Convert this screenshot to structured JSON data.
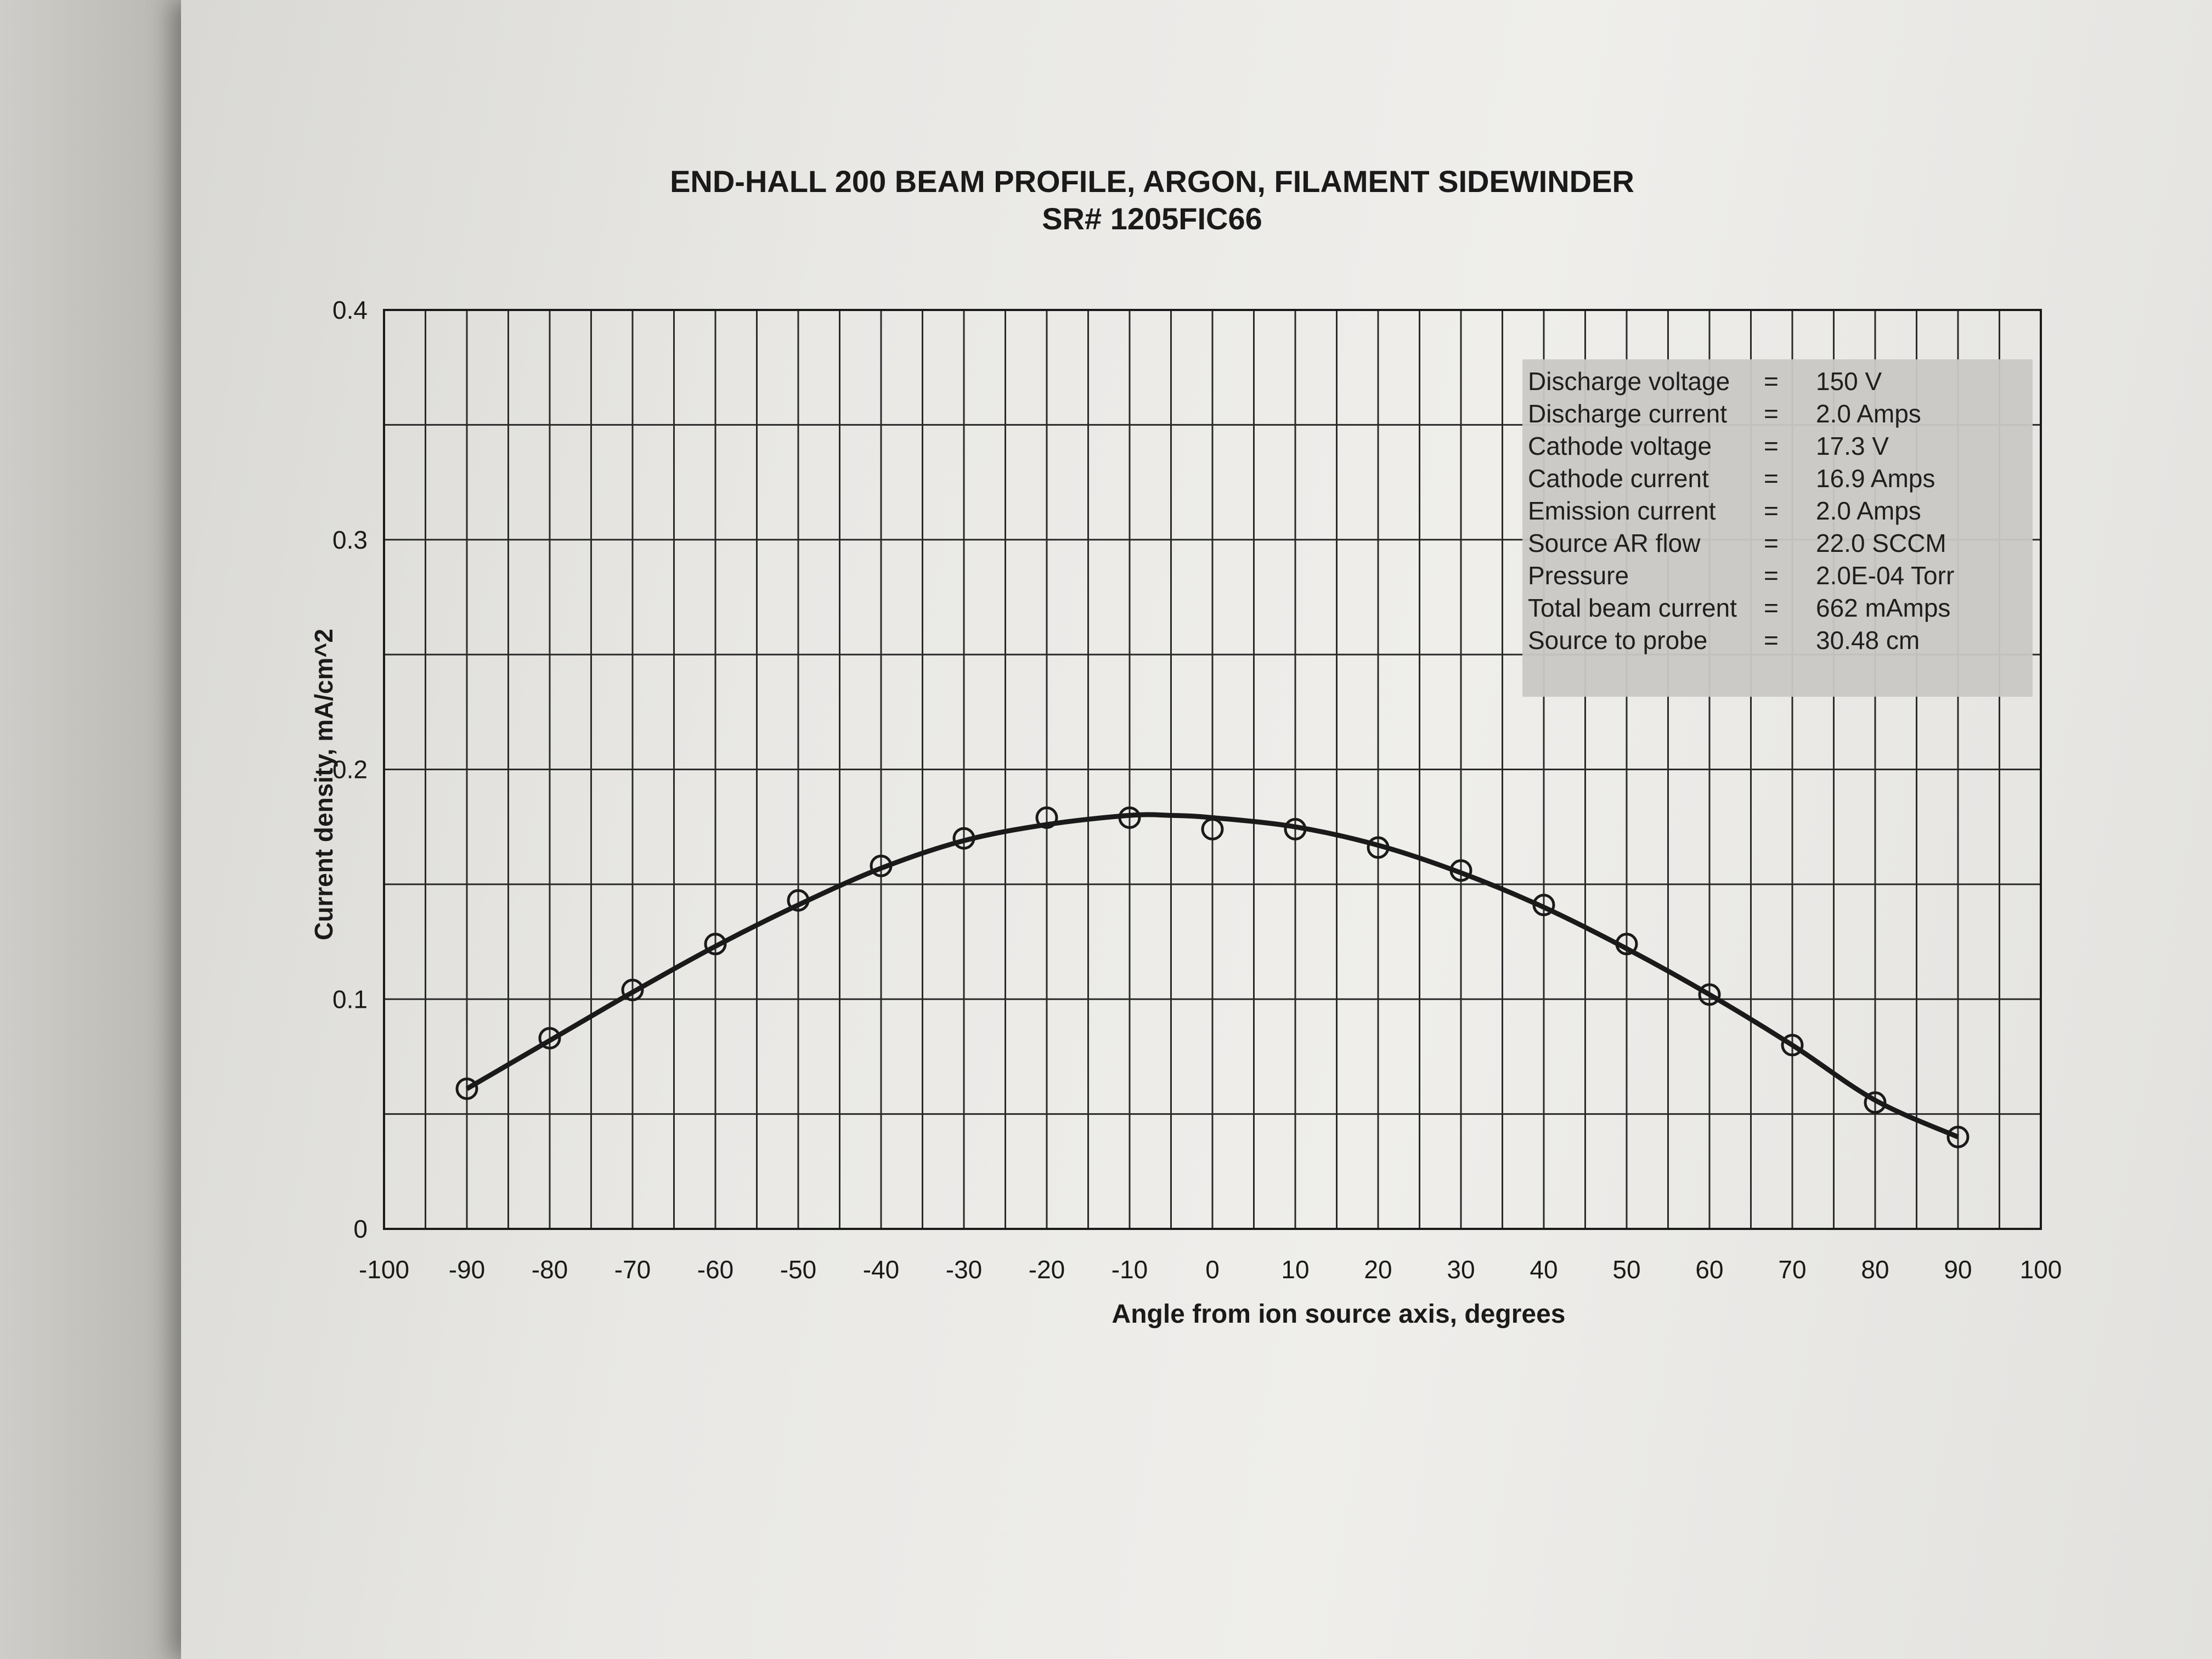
{
  "title_line1": "END-HALL 200 BEAM PROFILE, ARGON, FILAMENT SIDEWINDER",
  "title_line2": "SR# 1205FIC66",
  "parameters": [
    {
      "label": "Discharge voltage",
      "eq": "=",
      "value": "150 V"
    },
    {
      "label": "Discharge current",
      "eq": "=",
      "value": "2.0 Amps"
    },
    {
      "label": "Cathode voltage",
      "eq": "=",
      "value": "17.3 V"
    },
    {
      "label": "Cathode current",
      "eq": "=",
      "value": "16.9 Amps"
    },
    {
      "label": "Emission current",
      "eq": "=",
      "value": "2.0 Amps"
    },
    {
      "label": "Source AR flow",
      "eq": "=",
      "value": "22.0 SCCM"
    },
    {
      "label": "Pressure",
      "eq": "=",
      "value": "2.0E-04 Torr"
    },
    {
      "label": "Total beam current",
      "eq": "=",
      "value": "662 mAmps"
    },
    {
      "label": "Source to probe",
      "eq": "=",
      "value": "30.48 cm"
    }
  ],
  "colors": {
    "line": "#1a1a1a",
    "grid": "#2a2a2a",
    "box": "#c9c8c5"
  },
  "chart_data": {
    "type": "scatter",
    "title": "END-HALL 200 BEAM PROFILE, ARGON, FILAMENT SIDEWINDER\nSR# 1205FIC66",
    "xlabel": "Angle from ion source axis, degrees",
    "ylabel": "Current density, mA/cm^2",
    "xlim": [
      -100,
      100
    ],
    "ylim": [
      0,
      0.4
    ],
    "xticks": [
      "-100",
      "-90",
      "-80",
      "-70",
      "-60",
      "-50",
      "-40",
      "-30",
      "-20",
      "-10",
      "0",
      "10",
      "20",
      "30",
      "40",
      "50",
      "60",
      "70",
      "80",
      "90",
      "100"
    ],
    "yticks": [
      "0",
      "0.1",
      "0.2",
      "0.3",
      "0.4"
    ],
    "grid": true,
    "legend": "none",
    "series": [
      {
        "marker": "open-circle",
        "x": [
          -90,
          -80,
          -70,
          -60,
          -50,
          -40,
          -30,
          -20,
          -10,
          0,
          10,
          20,
          30,
          40,
          50,
          60,
          70,
          80,
          90
        ],
        "y": [
          0.061,
          0.083,
          0.104,
          0.124,
          0.143,
          0.158,
          0.17,
          0.179,
          0.179,
          0.174,
          0.174,
          0.166,
          0.156,
          0.141,
          0.124,
          0.102,
          0.08,
          0.055,
          0.04
        ]
      },
      {
        "style": "fit-line",
        "x": [
          -90,
          -80,
          -70,
          -60,
          -50,
          -40,
          -30,
          -20,
          -10,
          -5,
          0,
          10,
          20,
          30,
          40,
          50,
          60,
          70,
          80,
          90
        ],
        "y": [
          0.061,
          0.082,
          0.103,
          0.123,
          0.141,
          0.157,
          0.169,
          0.176,
          0.18,
          0.18,
          0.179,
          0.175,
          0.167,
          0.155,
          0.14,
          0.122,
          0.102,
          0.08,
          0.056,
          0.04
        ]
      }
    ]
  }
}
